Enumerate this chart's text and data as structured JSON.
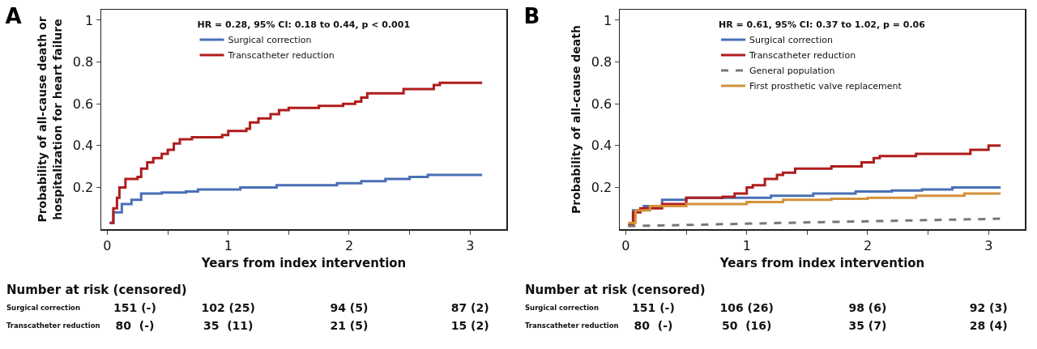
{
  "chart_data": [
    {
      "type": "step",
      "title": "A",
      "xlabel": "Years from index intervention",
      "ylabel": "Probability of all-cause death or\nhospitalization for heart failure",
      "legend_title": "HR = 0.28, 95% CI: 0.18 to 0.44, p < 0.001",
      "legend": "top",
      "grid": false,
      "marker": "none",
      "xlim": [
        -0.05,
        3.3
      ],
      "xticks": [
        0,
        {
          "value": 0.5,
          "label": null
        },
        1,
        {
          "value": 1.5,
          "label": null
        },
        2,
        {
          "value": 2.5,
          "label": null
        },
        3
      ],
      "ylim": [
        0,
        1.05
      ],
      "yticks": [
        0.2,
        0.4,
        0.6,
        0.8,
        1.0
      ],
      "series": [
        {
          "name": "Surgical correction",
          "color": "#4a6fb5",
          "x": [
            0.02,
            0.05,
            0.12,
            0.2,
            0.28,
            0.45,
            0.65,
            0.75,
            1.1,
            1.4,
            1.9,
            2.1,
            2.3,
            2.5,
            2.65,
            3.1
          ],
          "values": [
            0.03,
            0.08,
            0.12,
            0.14,
            0.17,
            0.175,
            0.18,
            0.19,
            0.2,
            0.21,
            0.22,
            0.23,
            0.24,
            0.25,
            0.26,
            0.26
          ]
        },
        {
          "name": "Transcatheter reduction",
          "color": "#b01c1c",
          "x": [
            0.02,
            0.05,
            0.08,
            0.1,
            0.15,
            0.25,
            0.28,
            0.33,
            0.38,
            0.45,
            0.5,
            0.55,
            0.6,
            0.7,
            0.95,
            1.0,
            1.15,
            1.18,
            1.25,
            1.35,
            1.42,
            1.5,
            1.75,
            1.95,
            2.05,
            2.1,
            2.15,
            2.45,
            2.7,
            2.75,
            3.1
          ],
          "values": [
            0.03,
            0.1,
            0.15,
            0.2,
            0.24,
            0.25,
            0.29,
            0.32,
            0.34,
            0.36,
            0.38,
            0.41,
            0.43,
            0.44,
            0.45,
            0.47,
            0.48,
            0.51,
            0.53,
            0.55,
            0.57,
            0.58,
            0.59,
            0.6,
            0.61,
            0.63,
            0.65,
            0.67,
            0.69,
            0.7,
            0.7
          ]
        }
      ],
      "annotations": [
        "Number at risk (censored)",
        "Surgical correction",
        "151 (-)",
        "102 (25)",
        "94 (5)",
        "87 (2)",
        "Transcatheter reduction",
        "80  (-)",
        "35  (11)",
        "21 (5)",
        "15 (2)"
      ]
    },
    {
      "type": "step",
      "title": "B",
      "xlabel": "Years from index intervention",
      "ylabel": "Probability of all-cause death",
      "legend_title": "HR = 0.61, 95% CI: 0.37 to 1.02, p = 0.06",
      "legend": "top",
      "grid": false,
      "marker": "none",
      "xlim": [
        -0.05,
        3.3
      ],
      "xticks": [
        0,
        {
          "value": 0.5,
          "label": null
        },
        1,
        {
          "value": 1.5,
          "label": null
        },
        2,
        {
          "value": 2.5,
          "label": null
        },
        3
      ],
      "ylim": [
        0,
        1.05
      ],
      "yticks": [
        0.2,
        0.4,
        0.6,
        0.8,
        1.0
      ],
      "series": [
        {
          "name": "Surgical correction",
          "color": "#4a6fb5",
          "x": [
            0.02,
            0.06,
            0.15,
            0.3,
            0.5,
            0.95,
            1.2,
            1.55,
            1.9,
            2.2,
            2.45,
            2.7,
            3.1
          ],
          "values": [
            0.02,
            0.09,
            0.11,
            0.14,
            0.15,
            0.15,
            0.16,
            0.17,
            0.18,
            0.185,
            0.19,
            0.2,
            0.2
          ]
        },
        {
          "name": "Transcatheter reduction",
          "color": "#b01c1c",
          "x": [
            0.02,
            0.06,
            0.12,
            0.3,
            0.5,
            0.8,
            0.9,
            1.0,
            1.05,
            1.15,
            1.25,
            1.3,
            1.4,
            1.7,
            1.95,
            2.05,
            2.1,
            2.4,
            2.85,
            3.0,
            3.1
          ],
          "values": [
            0.02,
            0.08,
            0.1,
            0.12,
            0.15,
            0.155,
            0.17,
            0.2,
            0.21,
            0.24,
            0.26,
            0.27,
            0.29,
            0.3,
            0.32,
            0.34,
            0.35,
            0.36,
            0.38,
            0.4,
            0.4
          ]
        },
        {
          "name": "General population",
          "type": "line",
          "line_style": "dashed",
          "color": "#777777",
          "x": [
            0.02,
            0.5,
            1.3,
            2.2,
            3.1
          ],
          "values": [
            0.015,
            0.02,
            0.03,
            0.04,
            0.05
          ]
        },
        {
          "name": "First prosthetic valve replacement",
          "color": "#d4913a",
          "x": [
            0.02,
            0.08,
            0.2,
            0.5,
            1.0,
            1.3,
            1.7,
            2.0,
            2.4,
            2.8,
            3.1
          ],
          "values": [
            0.03,
            0.09,
            0.11,
            0.12,
            0.13,
            0.14,
            0.145,
            0.15,
            0.16,
            0.17,
            0.17
          ]
        }
      ],
      "annotations": [
        "Number at risk (censored)",
        "Surgical correction",
        "151 (-)",
        "106 (26)",
        "98 (6)",
        "92 (3)",
        "Transcatheter reduction",
        "80  (-)",
        "50  (16)",
        "35 (7)",
        "28 (4)"
      ]
    }
  ]
}
